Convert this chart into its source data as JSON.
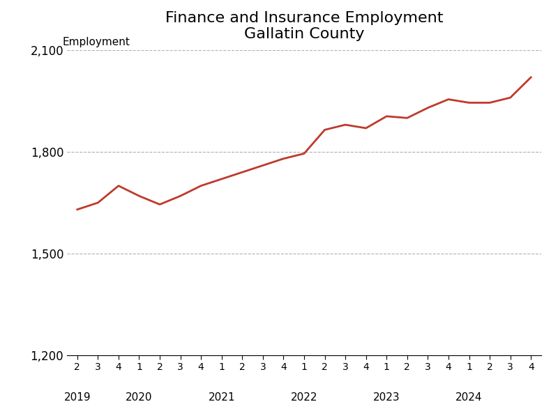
{
  "title_line1": "Finance and Insurance Employment",
  "title_line2": "Gallatin County",
  "ylabel": "Employment",
  "line_color": "#C0392B",
  "line_width": 2.0,
  "background_color": "#FFFFFF",
  "grid_color": "#B0B0B0",
  "ylim": [
    1200,
    2100
  ],
  "yticks": [
    1200,
    1500,
    1800,
    2100
  ],
  "ytick_labels": [
    "1,200",
    "1,500",
    "1,800",
    "2,100"
  ],
  "y_values": [
    1630,
    1650,
    1700,
    1670,
    1645,
    1670,
    1700,
    1720,
    1740,
    1760,
    1780,
    1795,
    1865,
    1880,
    1870,
    1905,
    1900,
    1930,
    1955,
    1945,
    1945,
    1960,
    2020
  ],
  "quarter_tick_labels": [
    "2",
    "3",
    "4",
    "1",
    "2",
    "3",
    "4",
    "1",
    "2",
    "3",
    "4",
    "1",
    "2",
    "3",
    "4",
    "1",
    "2",
    "3",
    "4",
    "1",
    "2",
    "3",
    "4"
  ],
  "year_labels": [
    "2019",
    "2020",
    "2021",
    "2022",
    "2023",
    "2024"
  ],
  "year_x_positions": [
    0,
    3,
    7,
    11,
    15,
    19
  ]
}
